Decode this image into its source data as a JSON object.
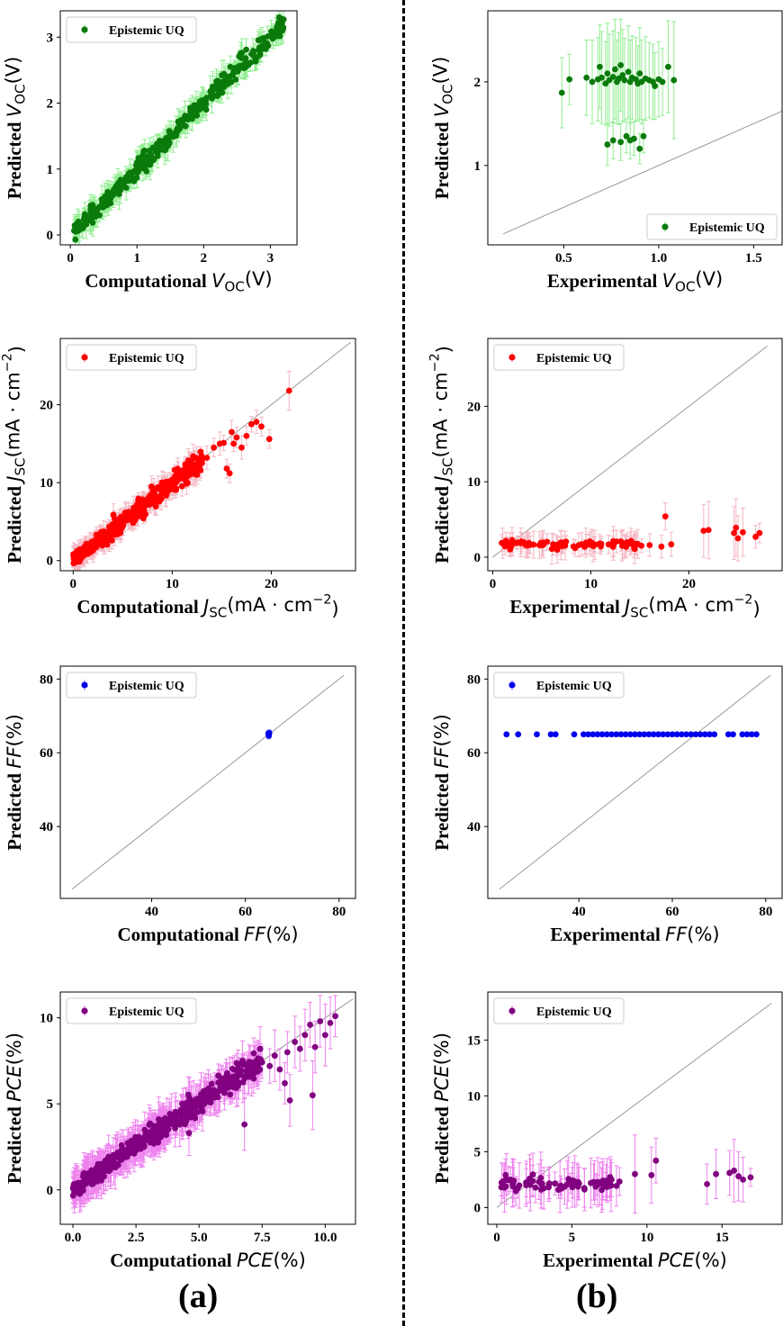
{
  "colors": {
    "green": "#0a7a0a",
    "green_err": "#90ee90",
    "red": "#ff0000",
    "red_err": "#f4b6c2",
    "blue": "#0000ee",
    "blue_err": "#9999ff",
    "purple": "#800080",
    "purple_err": "#ee82ee",
    "diag": "#999999"
  },
  "legend_label": "Epistemic UQ",
  "panel_labels": {
    "a": "(a)",
    "b": "(b)"
  },
  "chart_data": [
    {
      "id": "voc-comp",
      "type": "scatter",
      "color": "green",
      "xlabel": "Computational",
      "ylabel": "Predicted",
      "x_symbol": "V",
      "x_sub": "OC",
      "x_unit": "(V)",
      "y_symbol": "V",
      "y_sub": "OC",
      "y_unit": "(V)",
      "xlim": [
        -0.15,
        3.4
      ],
      "ylim": [
        -0.15,
        3.4
      ],
      "xticks": [
        0,
        1,
        2,
        3
      ],
      "yticks": [
        0,
        1,
        2,
        3
      ],
      "diag": false,
      "legend": "top-left",
      "cloud": {
        "n": 380,
        "x": [
          0.05,
          3.2
        ],
        "sigma": 0.09,
        "bias": 0.0,
        "err": 0.18,
        "seed": 1
      }
    },
    {
      "id": "voc-exp",
      "type": "scatter",
      "color": "green",
      "xlabel": "Experimental",
      "ylabel": "Predicted",
      "x_symbol": "V",
      "x_sub": "OC",
      "x_unit": "(V)",
      "y_symbol": "V",
      "y_sub": "OC",
      "y_unit": "(V)",
      "xlim": [
        0.1,
        1.65
      ],
      "ylim": [
        0.05,
        2.85
      ],
      "xticks": [
        0.5,
        1.0,
        1.5
      ],
      "xtick_labels": [
        "0.5",
        "1.0",
        "1.5"
      ],
      "yticks": [
        1,
        2
      ],
      "diag": true,
      "diag_range": [
        0.18,
        1.65
      ],
      "legend": "bottom-right",
      "points": [
        [
          0.49,
          1.87
        ],
        [
          0.53,
          2.03
        ],
        [
          0.62,
          2.05
        ],
        [
          0.65,
          2.0
        ],
        [
          0.68,
          2.03
        ],
        [
          0.7,
          2.05
        ],
        [
          0.72,
          1.98
        ],
        [
          0.73,
          2.1
        ],
        [
          0.74,
          2.02
        ],
        [
          0.76,
          2.06
        ],
        [
          0.77,
          2.15
        ],
        [
          0.78,
          2.0
        ],
        [
          0.79,
          2.04
        ],
        [
          0.8,
          2.2
        ],
        [
          0.8,
          1.28
        ],
        [
          0.81,
          2.08
        ],
        [
          0.82,
          2.02
        ],
        [
          0.83,
          1.35
        ],
        [
          0.84,
          2.12
        ],
        [
          0.85,
          2.0
        ],
        [
          0.85,
          1.3
        ],
        [
          0.86,
          2.05
        ],
        [
          0.87,
          1.32
        ],
        [
          0.88,
          2.03
        ],
        [
          0.89,
          1.98
        ],
        [
          0.9,
          2.1
        ],
        [
          0.9,
          1.2
        ],
        [
          0.91,
          2.0
        ],
        [
          0.92,
          1.35
        ],
        [
          0.93,
          2.04
        ],
        [
          0.95,
          2.02
        ],
        [
          0.97,
          2.0
        ],
        [
          0.98,
          1.95
        ],
        [
          1.0,
          2.03
        ],
        [
          1.02,
          2.0
        ],
        [
          1.05,
          2.18
        ],
        [
          1.08,
          2.02
        ],
        [
          0.73,
          1.25
        ],
        [
          0.76,
          1.3
        ],
        [
          0.69,
          2.18
        ]
      ],
      "errs": [
        0.42,
        0.3,
        0.45,
        0.5,
        0.5,
        0.55,
        0.5,
        0.6,
        0.55,
        0.55,
        0.6,
        0.5,
        0.55,
        0.55,
        0.22,
        0.55,
        0.5,
        0.2,
        0.55,
        0.5,
        0.22,
        0.5,
        0.2,
        0.5,
        0.45,
        0.55,
        0.18,
        0.5,
        0.2,
        0.5,
        0.45,
        0.45,
        0.4,
        0.45,
        0.4,
        0.55,
        0.7,
        0.25,
        0.22,
        0.5
      ]
    },
    {
      "id": "jsc-comp",
      "type": "scatter",
      "color": "red",
      "xlabel": "Computational",
      "ylabel": "Predicted",
      "x_symbol": "J",
      "x_sub": "SC",
      "x_unit": "(mA · cm",
      "x_sup": "−2",
      "y_symbol": "J",
      "y_sub": "SC",
      "y_unit": "(mA · cm",
      "y_sup": "−2",
      "xlim": [
        -1.3,
        28.5
      ],
      "ylim": [
        -1.3,
        28.5
      ],
      "xticks": [
        0,
        10,
        20
      ],
      "yticks": [
        0,
        10,
        20
      ],
      "diag": true,
      "diag_range": [
        0,
        28
      ],
      "legend": "top-left",
      "cloud": {
        "n": 420,
        "x": [
          0,
          13
        ],
        "sigma": 0.7,
        "bias": -0.1,
        "err": 1.2,
        "seed": 2
      },
      "points": [
        [
          13.5,
          13.2
        ],
        [
          14.2,
          14.5
        ],
        [
          14.8,
          15.0
        ],
        [
          15.2,
          15.1
        ],
        [
          15.5,
          11.8
        ],
        [
          15.8,
          11.2
        ],
        [
          16.0,
          16.5
        ],
        [
          16.5,
          15.8
        ],
        [
          17.0,
          14.5
        ],
        [
          17.5,
          16.0
        ],
        [
          18.0,
          17.5
        ],
        [
          18.5,
          17.8
        ],
        [
          19.0,
          17.2
        ],
        [
          19.8,
          15.6
        ],
        [
          21.8,
          21.8
        ],
        [
          16.2,
          15.0
        ],
        [
          12.5,
          11.0
        ],
        [
          13.0,
          12.5
        ]
      ],
      "errs": [
        1.5,
        1.2,
        1.5,
        1.0,
        1.2,
        1.2,
        1.5,
        1.3,
        1.5,
        1.2,
        1.0,
        1.5,
        1.2,
        1.2,
        2.5,
        1.0,
        1.2,
        1.2
      ]
    },
    {
      "id": "jsc-exp",
      "type": "scatter",
      "color": "red",
      "xlabel": "Experimental",
      "ylabel": "Predicted",
      "x_symbol": "J",
      "x_sub": "SC",
      "x_unit": "(mA · cm",
      "x_sup": "−2",
      "y_symbol": "J",
      "y_sub": "SC",
      "y_unit": "(mA · cm",
      "y_sup": "−2",
      "xlim": [
        -0.5,
        29.5
      ],
      "ylim": [
        -1.8,
        29
      ],
      "xticks": [
        0,
        10,
        20
      ],
      "yticks": [
        0,
        10,
        20
      ],
      "diag": true,
      "diag_range": [
        0,
        28
      ],
      "legend": "top-left",
      "cloud": {
        "n": 90,
        "x": [
          0.8,
          15.5
        ],
        "flat": 1.7,
        "sigma": 0.25,
        "err": 1.6,
        "seed": 3
      },
      "points": [
        [
          17.2,
          1.4
        ],
        [
          17.6,
          5.4
        ],
        [
          18.2,
          1.7
        ],
        [
          21.5,
          3.5
        ],
        [
          22.0,
          3.6
        ],
        [
          24.6,
          3.2
        ],
        [
          24.8,
          3.9
        ],
        [
          25.0,
          2.5
        ],
        [
          25.5,
          3.3
        ],
        [
          26.8,
          2.7
        ],
        [
          27.2,
          3.2
        ],
        [
          16.0,
          1.6
        ]
      ],
      "errs": [
        1.5,
        1.8,
        1.6,
        3.5,
        3.8,
        3.5,
        3.8,
        3.0,
        3.2,
        1.5,
        1.3,
        1.5
      ]
    },
    {
      "id": "ff-comp",
      "type": "scatter",
      "color": "blue",
      "xlabel": "Computational",
      "ylabel": "Predicted",
      "x_symbol": "FF",
      "x_unit": "(%)",
      "y_symbol": "FF",
      "y_unit": "(%)",
      "xlim": [
        20.5,
        83.5
      ],
      "ylim": [
        20.5,
        83.5
      ],
      "xticks": [
        40,
        60,
        80
      ],
      "yticks": [
        40,
        60,
        80
      ],
      "diag": true,
      "diag_range": [
        23,
        81
      ],
      "legend": "top-left",
      "points": [
        [
          65.0,
          64.6
        ],
        [
          65.0,
          65.1
        ],
        [
          65.1,
          65.4
        ],
        [
          65.0,
          64.8
        ],
        [
          64.9,
          65.2
        ]
      ],
      "errs": [
        0.8,
        0.8,
        0.8,
        0.8,
        0.8
      ]
    },
    {
      "id": "ff-exp",
      "type": "scatter",
      "color": "blue",
      "xlabel": "Experimental",
      "ylabel": "Predicted",
      "x_symbol": "FF",
      "x_unit": "(%)",
      "y_symbol": "FF",
      "y_unit": "(%)",
      "xlim": [
        20.5,
        83.5
      ],
      "ylim": [
        20.5,
        83.5
      ],
      "xticks": [
        40,
        60,
        80
      ],
      "yticks": [
        40,
        60,
        80
      ],
      "diag": true,
      "diag_range": [
        23,
        81
      ],
      "legend": "top-left",
      "points": [
        [
          24.5,
          65
        ],
        [
          27,
          65
        ],
        [
          31,
          65
        ],
        [
          34,
          65
        ],
        [
          35,
          65
        ],
        [
          39,
          65
        ],
        [
          41,
          65
        ],
        [
          42,
          65
        ],
        [
          43,
          65
        ],
        [
          44,
          65
        ],
        [
          45,
          65
        ],
        [
          46,
          65
        ],
        [
          47,
          65
        ],
        [
          48,
          65
        ],
        [
          49,
          65
        ],
        [
          50,
          65
        ],
        [
          51,
          65
        ],
        [
          52,
          65
        ],
        [
          53,
          65
        ],
        [
          54,
          65
        ],
        [
          55,
          65
        ],
        [
          56,
          65
        ],
        [
          57,
          65
        ],
        [
          58,
          65
        ],
        [
          59,
          65
        ],
        [
          60,
          65
        ],
        [
          61,
          65
        ],
        [
          62,
          65
        ],
        [
          63,
          65
        ],
        [
          64,
          65
        ],
        [
          65,
          65
        ],
        [
          66,
          65
        ],
        [
          67,
          65
        ],
        [
          68,
          65
        ],
        [
          69,
          65
        ],
        [
          72,
          65
        ],
        [
          73,
          65
        ],
        [
          75,
          65
        ],
        [
          76,
          65
        ],
        [
          77,
          65
        ],
        [
          78,
          65
        ]
      ],
      "errs": []
    },
    {
      "id": "pce-comp",
      "type": "scatter",
      "color": "purple",
      "xlabel": "Computational",
      "ylabel": "Predicted",
      "x_symbol": "PCE",
      "x_unit": "(%)",
      "y_symbol": "PCE",
      "y_unit": "(%)",
      "xlim": [
        -0.5,
        11.2
      ],
      "ylim": [
        -2.0,
        11.5
      ],
      "xticks": [
        0.0,
        2.5,
        5.0,
        7.5,
        10.0
      ],
      "xtick_labels": [
        "0.0",
        "2.5",
        "5.0",
        "7.5",
        "10.0"
      ],
      "yticks": [
        0,
        5,
        10
      ],
      "diag": true,
      "diag_range": [
        -0.1,
        11.1
      ],
      "legend": "top-left",
      "cloud": {
        "n": 520,
        "x": [
          0,
          7.5
        ],
        "sigma": 0.35,
        "bias": 0.05,
        "err": 1.0,
        "seed": 4
      },
      "points": [
        [
          7.8,
          7.2
        ],
        [
          8.0,
          7.8
        ],
        [
          8.2,
          7.0
        ],
        [
          8.4,
          6.2
        ],
        [
          8.5,
          8.0
        ],
        [
          8.8,
          8.6
        ],
        [
          9.0,
          8.2
        ],
        [
          9.2,
          9.0
        ],
        [
          9.4,
          9.6
        ],
        [
          9.5,
          5.5
        ],
        [
          9.6,
          8.3
        ],
        [
          9.8,
          9.8
        ],
        [
          10.0,
          9.0
        ],
        [
          10.2,
          9.7
        ],
        [
          10.4,
          10.1
        ],
        [
          8.6,
          5.2
        ],
        [
          6.8,
          3.8
        ],
        [
          3.4,
          4.1
        ],
        [
          4.6,
          3.3
        ]
      ],
      "errs": [
        1.0,
        1.5,
        1.2,
        1.2,
        1.2,
        1.5,
        1.3,
        1.5,
        1.3,
        2.0,
        1.5,
        1.5,
        1.8,
        1.5,
        1.2,
        1.5,
        1.5,
        1.3,
        1.3
      ]
    },
    {
      "id": "pce-exp",
      "type": "scatter",
      "color": "purple",
      "xlabel": "Experimental",
      "ylabel": "Predicted",
      "x_symbol": "PCE",
      "x_unit": "(%)",
      "y_symbol": "PCE",
      "y_unit": "(%)",
      "xlim": [
        -0.6,
        19.0
      ],
      "ylim": [
        -1.5,
        19.3
      ],
      "xticks": [
        0,
        5,
        10,
        15
      ],
      "yticks": [
        0,
        5,
        10,
        15
      ],
      "diag": true,
      "diag_range": [
        0,
        18.3
      ],
      "legend": "top-left",
      "cloud": {
        "n": 75,
        "x": [
          0.3,
          8.3
        ],
        "flat": 2.1,
        "sigma": 0.35,
        "err": 1.8,
        "seed": 5
      },
      "points": [
        [
          9.2,
          3.0
        ],
        [
          10.3,
          2.9
        ],
        [
          10.6,
          4.2
        ],
        [
          14.0,
          2.1
        ],
        [
          14.6,
          3.0
        ],
        [
          15.5,
          3.1
        ],
        [
          15.8,
          3.3
        ],
        [
          16.1,
          2.8
        ],
        [
          16.4,
          2.5
        ],
        [
          16.9,
          2.7
        ]
      ],
      "errs": [
        3.5,
        2.5,
        2.0,
        1.8,
        2.2,
        2.0,
        2.8,
        2.2,
        2.0,
        0.8
      ]
    }
  ]
}
